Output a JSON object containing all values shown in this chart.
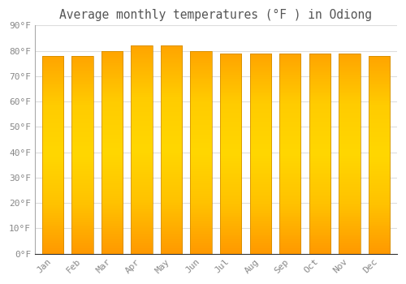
{
  "title": "Average monthly temperatures (°F ) in Odiong",
  "months": [
    "Jan",
    "Feb",
    "Mar",
    "Apr",
    "May",
    "Jun",
    "Jul",
    "Aug",
    "Sep",
    "Oct",
    "Nov",
    "Dec"
  ],
  "values": [
    78,
    78,
    80,
    82,
    82,
    80,
    79,
    79,
    79,
    79,
    79,
    78
  ],
  "bar_color": "#FFA500",
  "bar_edge_color": "#CC8800",
  "background_color": "#FFFFFF",
  "plot_bg_color": "#FFFFFF",
  "grid_color": "#DDDDDD",
  "text_color": "#888888",
  "title_color": "#555555",
  "ylim": [
    0,
    90
  ],
  "ytick_labels": [
    "0°F",
    "10°F",
    "20°F",
    "30°F",
    "40°F",
    "50°F",
    "60°F",
    "70°F",
    "80°F",
    "90°F"
  ],
  "title_fontsize": 10.5,
  "tick_fontsize": 8,
  "font_family": "monospace",
  "gradient_top": "#FFDD44",
  "gradient_mid": "#FFA500",
  "gradient_bottom": "#FF9900"
}
